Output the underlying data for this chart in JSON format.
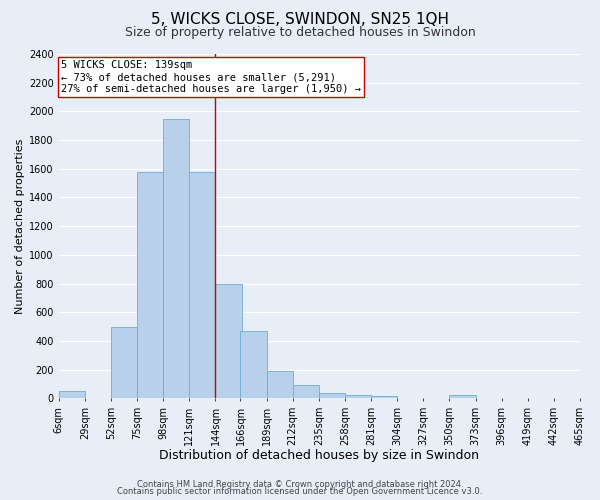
{
  "title": "5, WICKS CLOSE, SWINDON, SN25 1QH",
  "subtitle": "Size of property relative to detached houses in Swindon",
  "xlabel": "Distribution of detached houses by size in Swindon",
  "ylabel": "Number of detached properties",
  "bar_left_edges": [
    6,
    29,
    52,
    75,
    98,
    121,
    144,
    166,
    189,
    212,
    235,
    258,
    281,
    304,
    327,
    350,
    373,
    396,
    419,
    442
  ],
  "bar_heights": [
    50,
    0,
    500,
    1580,
    1950,
    1580,
    800,
    470,
    190,
    90,
    35,
    25,
    15,
    0,
    0,
    20,
    0,
    0,
    0,
    0
  ],
  "bin_width": 23,
  "tick_labels": [
    "6sqm",
    "29sqm",
    "52sqm",
    "75sqm",
    "98sqm",
    "121sqm",
    "144sqm",
    "166sqm",
    "189sqm",
    "212sqm",
    "235sqm",
    "258sqm",
    "281sqm",
    "304sqm",
    "327sqm",
    "350sqm",
    "373sqm",
    "396sqm",
    "419sqm",
    "442sqm",
    "465sqm"
  ],
  "bar_color": "#b8d0ea",
  "bar_edge_color": "#6baed6",
  "bg_color": "#e8eef8",
  "grid_color": "#ffffff",
  "vline_x": 144,
  "vline_color": "#cc0000",
  "annotation_title": "5 WICKS CLOSE: 139sqm",
  "annotation_line1": "← 73% of detached houses are smaller (5,291)",
  "annotation_line2": "27% of semi-detached houses are larger (1,950) →",
  "annotation_box_color": "#ffffff",
  "annotation_box_edge": "#cc0000",
  "ylim": [
    0,
    2400
  ],
  "yticks": [
    0,
    200,
    400,
    600,
    800,
    1000,
    1200,
    1400,
    1600,
    1800,
    2000,
    2200,
    2400
  ],
  "footer1": "Contains HM Land Registry data © Crown copyright and database right 2024.",
  "footer2": "Contains public sector information licensed under the Open Government Licence v3.0.",
  "title_fontsize": 11,
  "subtitle_fontsize": 9,
  "xlabel_fontsize": 9,
  "ylabel_fontsize": 8,
  "tick_fontsize": 7,
  "footer_fontsize": 6,
  "ann_fontsize": 7.5
}
